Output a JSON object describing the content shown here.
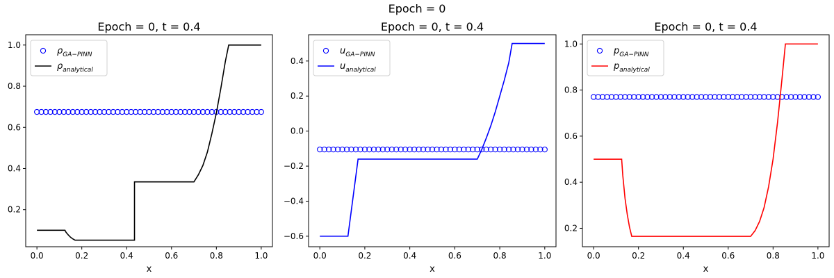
{
  "figure": {
    "suptitle": "Epoch = 0"
  },
  "chart_data": [
    {
      "type": "line",
      "title": "Epoch = 0, t = 0.4",
      "xlabel": "x",
      "ylabel": "",
      "xlim": [
        -0.05,
        1.05
      ],
      "ylim": [
        0.02,
        1.05
      ],
      "xticks": [
        0.0,
        0.2,
        0.4,
        0.6,
        0.8,
        1.0
      ],
      "xtick_labels": [
        "0.0",
        "0.2",
        "0.4",
        "0.6",
        "0.8",
        "1.0"
      ],
      "yticks": [
        0.2,
        0.4,
        0.6,
        0.8,
        1.0
      ],
      "ytick_labels": [
        "0.2",
        "0.4",
        "0.6",
        "0.8",
        "1.0"
      ],
      "legend_position": "top-left",
      "series": [
        {
          "name_base": "ρ",
          "name_sub": "GA−PINN",
          "kind": "scatter",
          "color": "#0000ff",
          "marker": "open-circle",
          "x_start": 0.0,
          "x_end": 1.0,
          "count": 51,
          "value": 0.675
        },
        {
          "name_base": "ρ",
          "name_sub": "analytical",
          "kind": "line",
          "color": "#000000",
          "x": [
            0.0,
            0.125,
            0.13,
            0.14,
            0.15,
            0.16,
            0.17,
            0.435,
            0.435,
            0.7,
            0.72,
            0.74,
            0.76,
            0.78,
            0.8,
            0.82,
            0.84,
            0.855,
            0.855,
            1.0
          ],
          "y": [
            0.1,
            0.1,
            0.09,
            0.077,
            0.066,
            0.058,
            0.052,
            0.052,
            0.335,
            0.335,
            0.37,
            0.415,
            0.48,
            0.57,
            0.67,
            0.79,
            0.92,
            1.0,
            1.0,
            1.0
          ]
        }
      ]
    },
    {
      "type": "line",
      "title": "Epoch = 0, t = 0.4",
      "xlabel": "x",
      "ylabel": "",
      "xlim": [
        -0.05,
        1.05
      ],
      "ylim": [
        -0.66,
        0.55
      ],
      "xticks": [
        0.0,
        0.2,
        0.4,
        0.6,
        0.8,
        1.0
      ],
      "xtick_labels": [
        "0.0",
        "0.2",
        "0.4",
        "0.6",
        "0.8",
        "1.0"
      ],
      "yticks": [
        -0.6,
        -0.4,
        -0.2,
        0.0,
        0.2,
        0.4
      ],
      "ytick_labels": [
        "−0.6",
        "−0.4",
        "−0.2",
        "0.0",
        "0.2",
        "0.4"
      ],
      "legend_position": "top-left",
      "series": [
        {
          "name_base": "u",
          "name_sub": "GA−PINN",
          "kind": "scatter",
          "color": "#0000ff",
          "marker": "open-circle",
          "x_start": 0.0,
          "x_end": 1.0,
          "count": 51,
          "value": -0.105
        },
        {
          "name_base": "u",
          "name_sub": "analytical",
          "kind": "line",
          "color": "#0000ff",
          "x": [
            0.0,
            0.125,
            0.17,
            0.7,
            0.72,
            0.74,
            0.76,
            0.78,
            0.8,
            0.82,
            0.84,
            0.855,
            1.0
          ],
          "y": [
            -0.6,
            -0.6,
            -0.16,
            -0.16,
            -0.105,
            -0.04,
            0.03,
            0.11,
            0.2,
            0.29,
            0.39,
            0.5,
            0.5
          ]
        }
      ]
    },
    {
      "type": "line",
      "title": "Epoch = 0, t = 0.4",
      "xlabel": "x",
      "ylabel": "",
      "xlim": [
        -0.05,
        1.05
      ],
      "ylim": [
        0.12,
        1.04
      ],
      "xticks": [
        0.0,
        0.2,
        0.4,
        0.6,
        0.8,
        1.0
      ],
      "xtick_labels": [
        "0.0",
        "0.2",
        "0.4",
        "0.6",
        "0.8",
        "1.0"
      ],
      "yticks": [
        0.2,
        0.4,
        0.6,
        0.8,
        1.0
      ],
      "ytick_labels": [
        "0.2",
        "0.4",
        "0.6",
        "0.8",
        "1.0"
      ],
      "legend_position": "top-left",
      "series": [
        {
          "name_base": "p",
          "name_sub": "GA−PINN",
          "kind": "scatter",
          "color": "#0000ff",
          "marker": "open-circle",
          "x_start": 0.0,
          "x_end": 1.0,
          "count": 51,
          "value": 0.77
        },
        {
          "name_base": "p",
          "name_sub": "analytical",
          "kind": "line",
          "color": "#ff0000",
          "x": [
            0.0,
            0.125,
            0.13,
            0.14,
            0.15,
            0.16,
            0.17,
            0.7,
            0.72,
            0.74,
            0.76,
            0.78,
            0.8,
            0.82,
            0.84,
            0.855,
            1.0
          ],
          "y": [
            0.5,
            0.5,
            0.43,
            0.33,
            0.26,
            0.205,
            0.165,
            0.165,
            0.19,
            0.23,
            0.29,
            0.38,
            0.5,
            0.66,
            0.85,
            1.0,
            1.0
          ]
        }
      ]
    }
  ]
}
